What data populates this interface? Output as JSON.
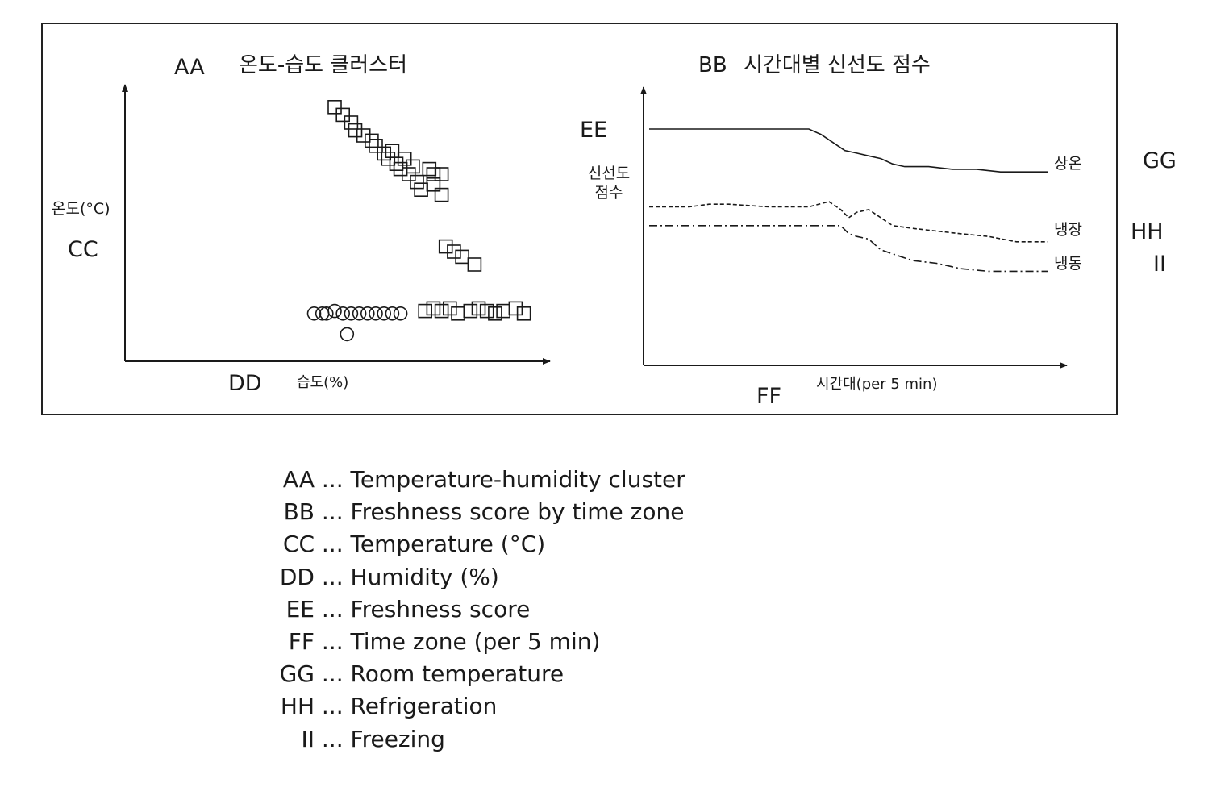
{
  "colors": {
    "ink": "#1a1a1a",
    "background": "#ffffff"
  },
  "chart_data": [
    {
      "type": "scatter",
      "code": "AA",
      "title": "온도-습도 클러스터",
      "ylabel_code": "CC",
      "ylabel": "온도(°C)",
      "xlabel_code": "DD",
      "xlabel": "습도(%)",
      "x_range": [
        0,
        100
      ],
      "y_range": [
        0,
        100
      ],
      "series": [
        {
          "marker": "square",
          "points": [
            [
              50,
              96
            ],
            [
              52,
              93
            ],
            [
              54,
              90
            ],
            [
              55,
              87
            ],
            [
              57,
              85
            ],
            [
              59,
              83
            ],
            [
              60,
              81
            ],
            [
              62,
              78
            ],
            [
              63,
              76
            ],
            [
              65,
              74
            ],
            [
              66,
              72
            ],
            [
              64,
              79
            ],
            [
              68,
              70
            ],
            [
              70,
              67
            ],
            [
              71,
              64
            ],
            [
              67,
              76
            ],
            [
              69,
              73
            ],
            [
              73,
              72
            ],
            [
              74,
              70
            ],
            [
              76,
              70
            ],
            [
              74,
              66
            ],
            [
              76,
              62
            ],
            [
              77,
              42
            ],
            [
              79,
              40
            ],
            [
              81,
              38
            ],
            [
              84,
              35
            ],
            [
              72,
              17
            ],
            [
              74,
              18
            ],
            [
              76,
              17
            ],
            [
              78,
              18
            ],
            [
              80,
              16
            ],
            [
              83,
              17
            ],
            [
              85,
              18
            ],
            [
              87,
              17
            ],
            [
              89,
              16
            ],
            [
              91,
              17
            ],
            [
              94,
              18
            ],
            [
              96,
              16
            ]
          ]
        },
        {
          "marker": "circle",
          "points": [
            [
              45,
              16
            ],
            [
              47,
              16
            ],
            [
              48,
              16
            ],
            [
              50,
              17
            ],
            [
              52,
              16
            ],
            [
              54,
              16
            ],
            [
              56,
              16
            ],
            [
              58,
              16
            ],
            [
              60,
              16
            ],
            [
              62,
              16
            ],
            [
              64,
              16
            ],
            [
              66,
              16
            ],
            [
              53,
              8
            ]
          ]
        }
      ]
    },
    {
      "type": "line",
      "code": "BB",
      "title": "시간대별 신선도 점수",
      "ylabel_code": "EE",
      "ylabel": "신선도 점수",
      "xlabel_code": "FF",
      "xlabel": "시간대(per 5 min)",
      "x_range": [
        0,
        100
      ],
      "y_range": [
        0,
        100
      ],
      "series": [
        {
          "name": "상온",
          "code": "GG",
          "style": "solid",
          "x": [
            0,
            10,
            20,
            30,
            40,
            43,
            46,
            49,
            52,
            55,
            58,
            61,
            64,
            70,
            76,
            82,
            88,
            94,
            100
          ],
          "y": [
            88,
            88,
            88,
            88,
            88,
            86,
            83,
            80,
            79,
            78,
            77,
            75,
            74,
            74,
            73,
            73,
            72,
            72,
            72
          ]
        },
        {
          "name": "냉장",
          "code": "HH",
          "style": "dashed",
          "x": [
            0,
            10,
            15,
            20,
            30,
            40,
            45,
            48,
            50,
            52,
            55,
            58,
            61,
            66,
            72,
            78,
            85,
            92,
            100
          ],
          "y": [
            59,
            59,
            60,
            60,
            59,
            59,
            61,
            58,
            55,
            57,
            58,
            55,
            52,
            51,
            50,
            49,
            48,
            46,
            46
          ]
        },
        {
          "name": "냉동",
          "code": "II",
          "style": "dashdot",
          "x": [
            0,
            10,
            20,
            30,
            40,
            48,
            50,
            52,
            55,
            58,
            62,
            66,
            72,
            78,
            85,
            92,
            100
          ],
          "y": [
            52,
            52,
            52,
            52,
            52,
            52,
            49,
            48,
            47,
            43,
            41,
            39,
            38,
            36,
            35,
            35,
            35
          ]
        }
      ]
    }
  ],
  "legend": [
    {
      "key": "AA",
      "text": "... Temperature-humidity cluster"
    },
    {
      "key": "BB",
      "text": "... Freshness score by time zone"
    },
    {
      "key": "CC",
      "text": "... Temperature (°C)"
    },
    {
      "key": "DD",
      "text": "... Humidity (%)"
    },
    {
      "key": "EE",
      "text": "... Freshness score"
    },
    {
      "key": "FF",
      "text": "... Time zone (per 5 min)"
    },
    {
      "key": "GG",
      "text": "... Room temperature"
    },
    {
      "key": "HH",
      "text": "... Refrigeration"
    },
    {
      "key": "II",
      "text": "... Freezing"
    }
  ]
}
